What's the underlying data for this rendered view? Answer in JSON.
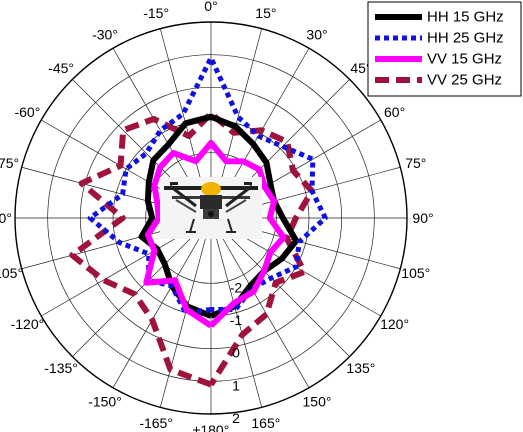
{
  "chart_data": {
    "type": "polar-line",
    "title": "",
    "angle_ticks_deg": [
      0,
      15,
      30,
      45,
      60,
      75,
      90,
      105,
      120,
      135,
      150,
      165,
      180,
      -165,
      -150,
      -135,
      -120,
      -105,
      -90,
      -75,
      -60,
      -45,
      -30,
      -15
    ],
    "angle_tick_labels": [
      "0°",
      "15°",
      "30°",
      "45°",
      "60°",
      "75°",
      "90°",
      "105°",
      "120°",
      "135°",
      "150°",
      "165°",
      "±180°",
      "-165°",
      "-150°",
      "-135°",
      "-120°",
      "-105°",
      "-90°",
      "-75°",
      "-60°",
      "-45°",
      "-30°",
      "-15°"
    ],
    "radial_ticks": [
      -2,
      -1,
      0,
      1,
      2
    ],
    "radial_tick_labels": [
      "-2",
      "-1",
      "0",
      "1",
      "2"
    ],
    "rlim": [
      -4,
      2
    ],
    "grid": true,
    "legend_position": "top-right",
    "inset_image": "quadcopter-drone-photo",
    "series": [
      {
        "name": "HH 15 GHz",
        "color": "#000000",
        "style": "solid",
        "angles_deg": [
          -180,
          -165,
          -150,
          -135,
          -120,
          -105,
          -90,
          -75,
          -60,
          -45,
          -30,
          -15,
          0,
          15,
          30,
          45,
          60,
          75,
          90,
          105,
          120,
          135,
          150,
          165,
          180
        ],
        "values": [
          -1.0,
          -1.2,
          -1.6,
          -2.0,
          -2.1,
          -1.8,
          -2.2,
          -2.0,
          -1.8,
          -1.5,
          -1.4,
          -1.0,
          -0.9,
          -1.1,
          -1.4,
          -1.6,
          -1.9,
          -2.0,
          -1.8,
          -1.3,
          -1.5,
          -1.7,
          -1.6,
          -1.2,
          -1.0
        ]
      },
      {
        "name": "HH 25 GHz",
        "color": "#1010e0",
        "style": "dotted",
        "angles_deg": [
          -180,
          -165,
          -150,
          -135,
          -120,
          -105,
          -90,
          -75,
          -60,
          -45,
          -30,
          -15,
          0,
          15,
          30,
          45,
          60,
          75,
          90,
          105,
          120,
          135,
          150,
          165,
          180
        ],
        "values": [
          -1.2,
          -1.0,
          -1.6,
          -1.3,
          -1.8,
          -1.1,
          -0.3,
          -1.2,
          -1.0,
          -1.2,
          -0.9,
          -0.7,
          0.9,
          -0.8,
          -1.1,
          -0.9,
          -0.4,
          -0.8,
          -0.5,
          -1.2,
          -1.0,
          -1.4,
          -1.5,
          -1.1,
          -1.2
        ]
      },
      {
        "name": "VV 15 GHz",
        "color": "#ff00ff",
        "style": "solid",
        "angles_deg": [
          -180,
          -165,
          -150,
          -135,
          -120,
          -105,
          -90,
          -75,
          -60,
          -45,
          -30,
          -15,
          0,
          15,
          30,
          45,
          60,
          75,
          90,
          105,
          120,
          135,
          150,
          165,
          180
        ],
        "values": [
          -0.7,
          -1.1,
          -1.8,
          -1.2,
          -2.0,
          -2.0,
          -2.4,
          -2.3,
          -2.0,
          -1.8,
          -1.7,
          -2.2,
          -1.7,
          -2.2,
          -2.0,
          -1.9,
          -2.1,
          -2.0,
          -2.2,
          -1.7,
          -1.9,
          -1.7,
          -1.4,
          -1.3,
          -0.7
        ]
      },
      {
        "name": "VV 25 GHz",
        "color": "#a0143c",
        "style": "dashed",
        "angles_deg": [
          -180,
          -165,
          -150,
          -135,
          -120,
          -105,
          -90,
          -75,
          -60,
          -45,
          -30,
          -15,
          0,
          15,
          30,
          45,
          60,
          75,
          90,
          105,
          120,
          135,
          150,
          165,
          180
        ],
        "values": [
          1.1,
          0.8,
          -0.4,
          -0.7,
          -0.2,
          0.4,
          -1.3,
          0.1,
          -0.8,
          -0.2,
          -0.5,
          -1.4,
          -0.8,
          -1.3,
          -0.9,
          -0.7,
          -1.1,
          -0.8,
          -1.4,
          -1.6,
          -0.7,
          -1.2,
          -0.6,
          -0.3,
          1.1
        ]
      }
    ]
  }
}
